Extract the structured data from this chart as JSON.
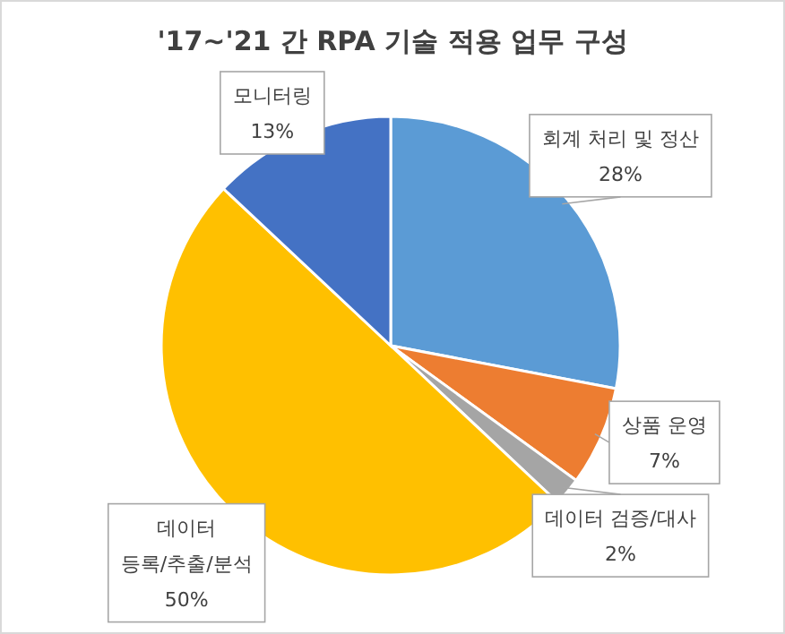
{
  "chart_data": {
    "type": "pie",
    "title": "'17~'21 간 RPA 기술 적용 업무 구성",
    "categories": [
      "회계 처리 및 정산",
      "상품 운영",
      "데이터 검증/대사",
      "데이터 등록/추출/분석",
      "모니터링"
    ],
    "values": [
      28,
      7,
      2,
      50,
      13
    ],
    "colors": [
      "#5b9bd5",
      "#ed7d31",
      "#a5a5a5",
      "#ffc000",
      "#4472c4"
    ],
    "value_labels": [
      "28%",
      "7%",
      "2%",
      "50%",
      "13%"
    ]
  }
}
